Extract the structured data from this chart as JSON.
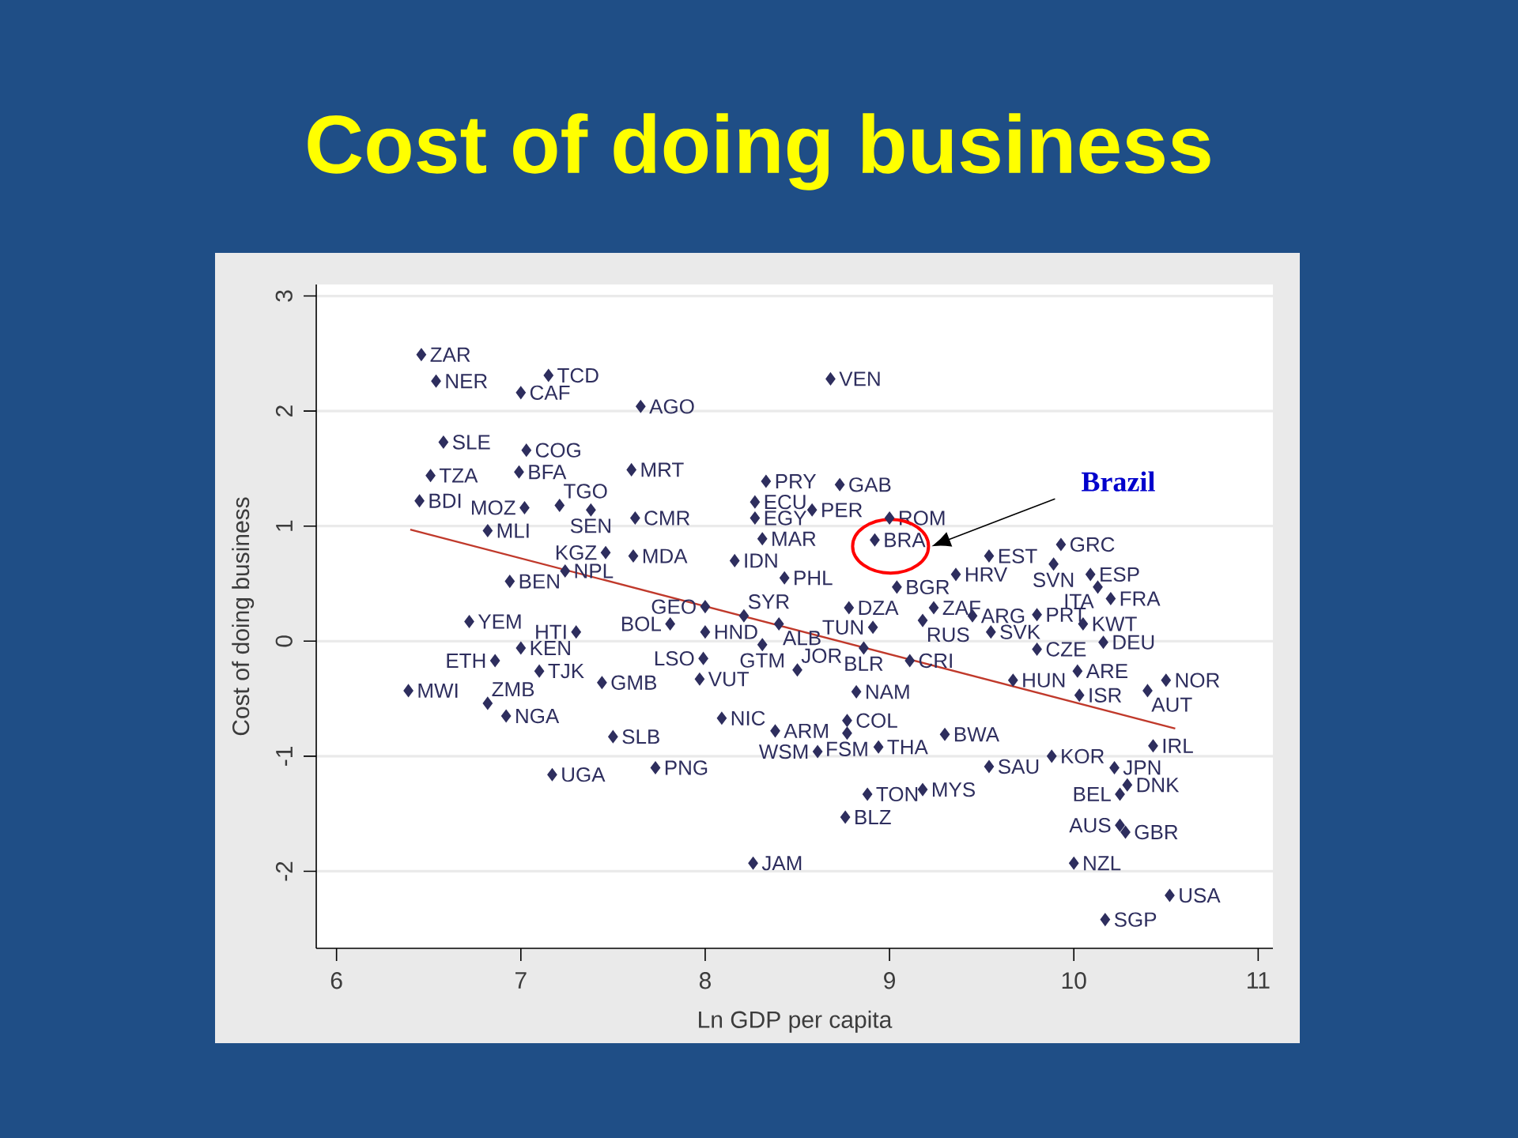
{
  "chart_data": {
    "type": "scatter",
    "title": "Cost of doing business",
    "xlabel": "Ln GDP per capita",
    "ylabel": "Cost of doing business",
    "xlim": [
      5.89,
      11.08
    ],
    "ylim": [
      -2.67,
      3.1
    ],
    "xticks": [
      6,
      7,
      8,
      9,
      10,
      11
    ],
    "yticks": [
      -2,
      -1,
      0,
      1,
      2,
      3
    ],
    "grid": "y",
    "series": [
      {
        "color": "#2e2e5e",
        "marker": "diamond",
        "x": [
          6.46,
          6.54,
          7.0,
          7.15,
          7.65,
          8.68,
          6.58,
          7.03,
          6.99,
          6.51,
          7.6,
          6.45,
          7.02,
          7.21,
          7.38,
          7.62,
          6.82,
          7.46,
          7.61,
          7.24,
          6.94,
          6.72,
          8.33,
          8.73,
          8.27,
          8.27,
          8.58,
          8.31,
          9.0,
          8.92,
          8.16,
          8.43,
          9.04,
          9.36,
          9.54,
          9.93,
          9.89,
          10.09,
          10.13,
          10.2,
          9.24,
          9.18,
          9.45,
          9.8,
          10.05,
          9.55,
          9.8,
          10.16,
          8.78,
          8.91,
          8.0,
          8.21,
          8.4,
          7.81,
          8.0,
          8.31,
          8.86,
          9.11,
          7.99,
          8.5,
          7.97,
          9.67,
          10.02,
          10.03,
          10.5,
          10.4,
          8.82,
          8.09,
          8.77,
          8.38,
          8.77,
          8.61,
          8.94,
          9.3,
          9.54,
          9.88,
          9.18,
          8.88,
          8.76,
          8.26,
          7.17,
          7.73,
          7.5,
          6.39,
          6.82,
          6.92,
          7.44,
          7.1,
          6.86,
          7.0,
          7.3,
          10.43,
          10.22,
          10.29,
          10.25,
          10.25,
          10.28,
          10.0,
          10.52,
          10.17
        ],
        "values": [
          2.49,
          2.26,
          2.16,
          2.31,
          2.04,
          2.28,
          1.73,
          1.66,
          1.47,
          1.44,
          1.49,
          1.22,
          1.16,
          1.18,
          1.14,
          1.07,
          0.96,
          0.77,
          0.74,
          0.61,
          0.52,
          0.17,
          1.39,
          1.36,
          1.21,
          1.07,
          1.14,
          0.89,
          1.07,
          0.88,
          0.7,
          0.55,
          0.47,
          0.58,
          0.74,
          0.84,
          0.67,
          0.58,
          0.47,
          0.37,
          0.29,
          0.18,
          0.22,
          0.23,
          0.15,
          0.08,
          -0.07,
          -0.01,
          0.29,
          0.12,
          0.3,
          0.22,
          0.15,
          0.15,
          0.08,
          -0.03,
          -0.06,
          -0.17,
          -0.15,
          -0.25,
          -0.33,
          -0.34,
          -0.26,
          -0.47,
          -0.34,
          -0.43,
          -0.44,
          -0.67,
          -0.69,
          -0.78,
          -0.8,
          -0.96,
          -0.92,
          -0.81,
          -1.09,
          -1.0,
          -1.29,
          -1.33,
          -1.53,
          -1.93,
          -1.16,
          -1.1,
          -0.83,
          -0.43,
          -0.54,
          -0.65,
          -0.36,
          -0.26,
          -0.17,
          -0.06,
          0.08,
          -0.91,
          -1.1,
          -1.25,
          -1.33,
          -1.6,
          -1.66,
          -1.93,
          -2.21,
          -2.42
        ],
        "value_labels": [
          "ZAR",
          "NER",
          "CAF",
          "TCD",
          "AGO",
          "VEN",
          "SLE",
          "COG",
          "BFA",
          "TZA",
          "MRT",
          "BDI",
          "MOZ",
          "TGO",
          "SEN",
          "CMR",
          "MLI",
          "KGZ",
          "MDA",
          "NPL",
          "BEN",
          "YEM",
          "PRY",
          "GAB",
          "ECU",
          "EGY",
          "PER",
          "MAR",
          "ROM",
          "BRA",
          "IDN",
          "PHL",
          "BGR",
          "HRV",
          "EST",
          "GRC",
          "SVN",
          "ESP",
          "ITA",
          "FRA",
          "ZAF",
          "RUS",
          "ARG",
          "PRT",
          "KWT",
          "SVK",
          "CZE",
          "DEU",
          "DZA",
          "TUN",
          "GEO",
          "SYR",
          "ALB",
          "BOL",
          "HND",
          "GTM",
          "BLR",
          "CRI",
          "LSO",
          "JOR",
          "VUT",
          "HUN",
          "ARE",
          "ISR",
          "NOR",
          "AUT",
          "NAM",
          "NIC",
          "COL",
          "ARM",
          "FSM",
          "WSM",
          "THA",
          "BWA",
          "SAU",
          "KOR",
          "MYS",
          "TON",
          "BLZ",
          "JAM",
          "UGA",
          "PNG",
          "SLB",
          "MWI",
          "ZMB",
          "NGA",
          "GMB",
          "TJK",
          "ETH",
          "KEN",
          "HTI",
          "IRL",
          "JPN",
          "DNK",
          "BEL",
          "AUS",
          "GBR",
          "NZL",
          "USA",
          "SGP"
        ]
      },
      {
        "type": "line",
        "color": "#c0392b",
        "marker": "none",
        "x": [
          6.4,
          10.55
        ],
        "values": [
          0.97,
          -0.76
        ]
      }
    ],
    "annotations": [
      "Brazil"
    ]
  }
}
